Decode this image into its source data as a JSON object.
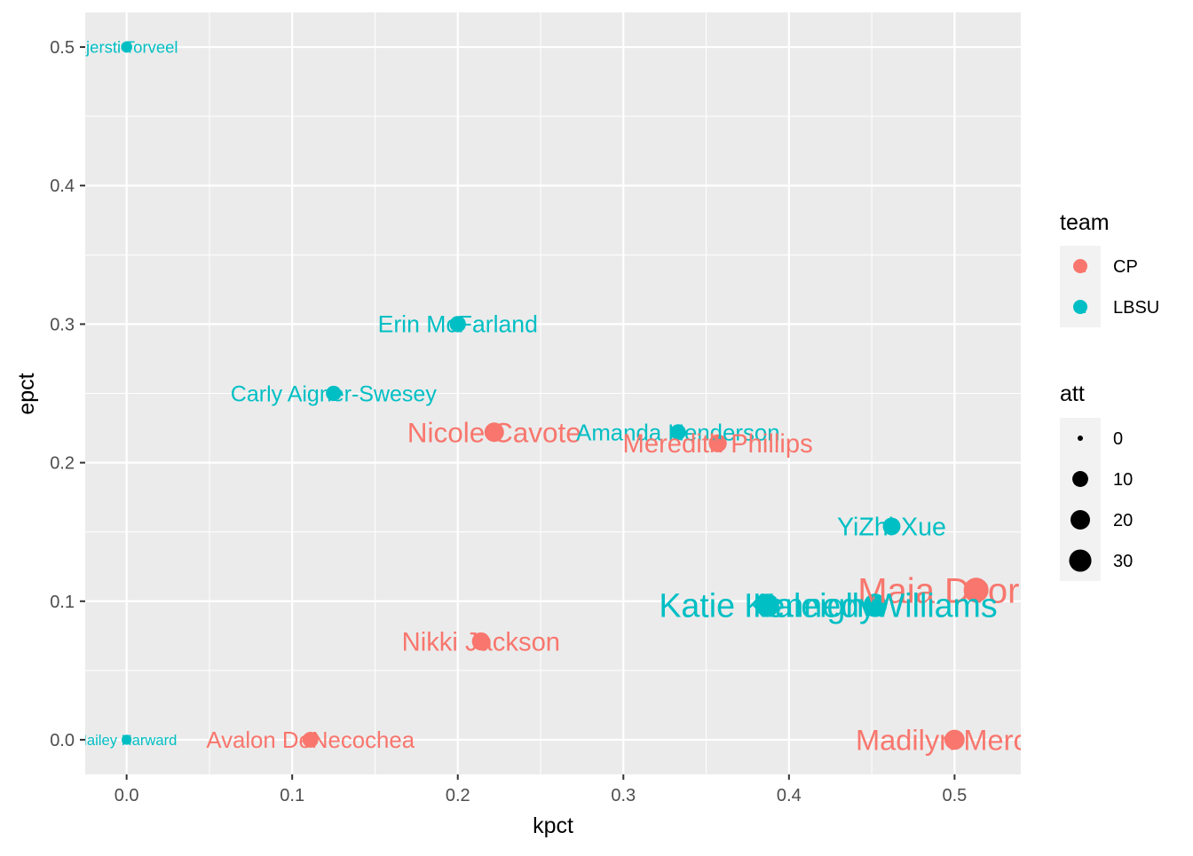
{
  "chart_data": {
    "type": "scatter",
    "title": "",
    "xlabel": "kpct",
    "ylabel": "epct",
    "xlim": [
      -0.025,
      0.54
    ],
    "ylim": [
      -0.025,
      0.525
    ],
    "x_ticks": [
      0.0,
      0.1,
      0.2,
      0.3,
      0.4,
      0.5
    ],
    "x_tick_labels": [
      "0.0",
      "0.1",
      "0.2",
      "0.3",
      "0.4",
      "0.5"
    ],
    "y_ticks": [
      0.0,
      0.1,
      0.2,
      0.3,
      0.4,
      0.5
    ],
    "y_tick_labels": [
      "0.0",
      "0.1",
      "0.2",
      "0.3",
      "0.4",
      "0.5"
    ],
    "grid": true,
    "legend_position": "right",
    "colors": {
      "CP": "#F8766D",
      "LBSU": "#00BFC4"
    },
    "points": [
      {
        "label": "Kjersti Torveel",
        "team": "LBSU",
        "kpct": 0.0,
        "epct": 0.5,
        "att": 2
      },
      {
        "label": "Erin McFarland",
        "team": "LBSU",
        "kpct": 0.2,
        "epct": 0.3,
        "att": 10
      },
      {
        "label": "Carly Aigner-Swesey",
        "team": "LBSU",
        "kpct": 0.125,
        "epct": 0.25,
        "att": 8
      },
      {
        "label": "Nicole Cavote",
        "team": "CP",
        "kpct": 0.222,
        "epct": 0.222,
        "att": 18
      },
      {
        "label": "Amanda Henderson",
        "team": "LBSU",
        "kpct": 0.333,
        "epct": 0.222,
        "att": 9
      },
      {
        "label": "Meredith Phillips",
        "team": "CP",
        "kpct": 0.357,
        "epct": 0.214,
        "att": 14
      },
      {
        "label": "YiZhi Xue",
        "team": "LBSU",
        "kpct": 0.462,
        "epct": 0.154,
        "att": 13
      },
      {
        "label": "Maia Dvoracek",
        "team": "CP",
        "kpct": 0.513,
        "epct": 0.108,
        "att": 37
      },
      {
        "label": "Katie Kennedy",
        "team": "LBSU",
        "kpct": 0.387,
        "epct": 0.097,
        "att": 31
      },
      {
        "label": "Kaleigh Williams",
        "team": "LBSU",
        "kpct": 0.452,
        "epct": 0.097,
        "att": 31
      },
      {
        "label": "Nikki Jackson",
        "team": "CP",
        "kpct": 0.214,
        "epct": 0.071,
        "att": 14
      },
      {
        "label": "Hailey Harward",
        "team": "LBSU",
        "kpct": 0.0,
        "epct": 0.0,
        "att": 1
      },
      {
        "label": "Avalon DeNecochea",
        "team": "CP",
        "kpct": 0.111,
        "epct": 0.0,
        "att": 9
      },
      {
        "label": "Madilyn Mercer",
        "team": "CP",
        "kpct": 0.5,
        "epct": 0.0,
        "att": 20
      }
    ],
    "legend": {
      "color_title": "team",
      "color_entries": [
        {
          "name": "CP",
          "glyph": "a"
        },
        {
          "name": "LBSU",
          "glyph": "a"
        }
      ],
      "size_title": "att",
      "size_entries": [
        0,
        10,
        20,
        30
      ],
      "size_entry_labels": [
        "0",
        "10",
        "20",
        "30"
      ]
    }
  }
}
